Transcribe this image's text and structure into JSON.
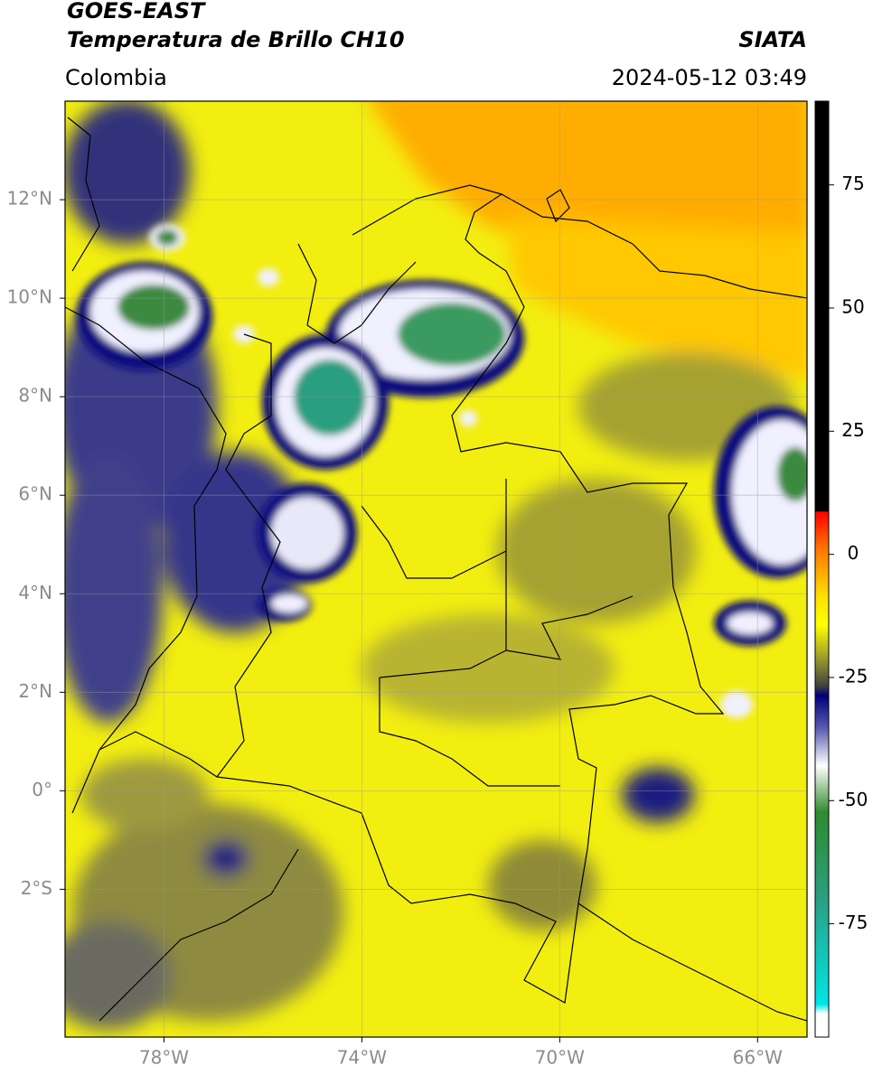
{
  "header": {
    "title": "GOES-EAST",
    "subtitle": "Temperatura de Brillo CH10",
    "source": "SIATA",
    "region": "Colombia",
    "datetime": "2024-05-12 03:49"
  },
  "map": {
    "xlim": [
      -80,
      -65
    ],
    "ylim": [
      -5,
      14
    ],
    "xticks": [
      {
        "value": -78,
        "label": "78°W"
      },
      {
        "value": -74,
        "label": "74°W"
      },
      {
        "value": -70,
        "label": "70°W"
      },
      {
        "value": -66,
        "label": "66°W"
      }
    ],
    "yticks": [
      {
        "value": 12,
        "label": "12°N"
      },
      {
        "value": 10,
        "label": "10°N"
      },
      {
        "value": 8,
        "label": "8°N"
      },
      {
        "value": 6,
        "label": "6°N"
      },
      {
        "value": 4,
        "label": "4°N"
      },
      {
        "value": 2,
        "label": "2°N"
      },
      {
        "value": 0,
        "label": "0°"
      },
      {
        "value": -2,
        "label": "2°S"
      }
    ],
    "grid": true
  },
  "colorbar": {
    "lim": [
      -98,
      92
    ],
    "ticks": [
      75,
      50,
      25,
      0,
      -25,
      -50,
      -75
    ]
  }
}
